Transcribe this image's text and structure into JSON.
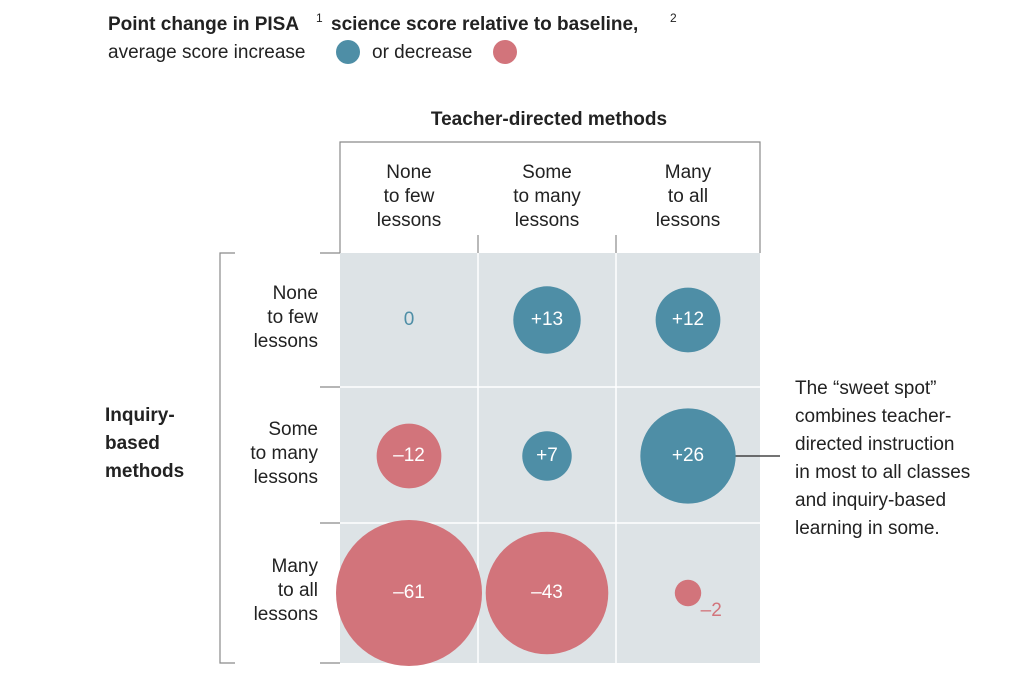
{
  "chart_data": {
    "type": "bubble",
    "title": "Point change in PISA",
    "title_footnote": "1",
    "title_rest": "science score relative to baseline,",
    "title_footnote2": "2",
    "series": [
      {
        "name": "average score increase",
        "color": "#4e8ea6"
      },
      {
        "name": "or decrease",
        "color": "#d2747b"
      }
    ],
    "column_title": "Teacher-directed methods",
    "columns": [
      [
        "None",
        "to few",
        "lessons"
      ],
      [
        "Some",
        "to many",
        "lessons"
      ],
      [
        "Many",
        "to all",
        "lessons"
      ]
    ],
    "row_title": [
      "Inquiry-",
      "based",
      "methods"
    ],
    "rows": [
      [
        "None",
        "to few",
        "lessons"
      ],
      [
        "Some",
        "to many",
        "lessons"
      ],
      [
        "Many",
        "to all",
        "lessons"
      ]
    ],
    "values": [
      [
        0,
        13,
        12
      ],
      [
        -12,
        7,
        26
      ],
      [
        -61,
        -43,
        -2
      ]
    ],
    "value_labels": [
      [
        "0",
        "+13",
        "+12"
      ],
      [
        "–12",
        "+7",
        "+26"
      ],
      [
        "–61",
        "–43",
        "–2"
      ]
    ],
    "annotation": [
      "The “sweet spot”",
      "combines teacher-",
      "directed instruction",
      "in most to all classes",
      "and inquiry-based",
      "learning in some."
    ]
  }
}
